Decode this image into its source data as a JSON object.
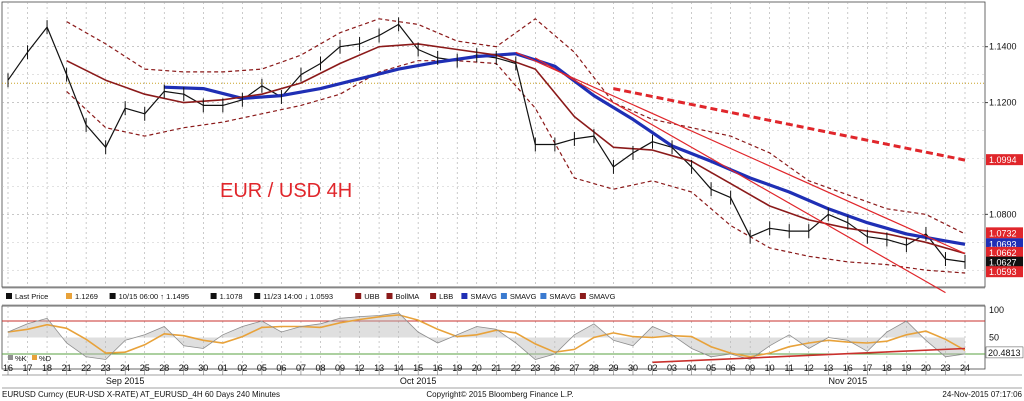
{
  "chart_data": {
    "type": "line",
    "title": "EUR / USD 4H",
    "title_color": "#e0262b",
    "instrument": "EURUSD Curncy (EUR-USD X-RATE) AT_EURUSD_4H 60 Days 240 Minutes",
    "copyright": "Copyright© 2015 Bloomberg Finance L.P.",
    "timestamp": "24-Nov-2015 07:17:06",
    "main_axis": {
      "ylim": [
        1.054,
        1.156
      ],
      "ticks": [
        "1.1400",
        "1.1200",
        "1.0800"
      ],
      "tick_values": [
        1.14,
        1.12,
        1.08
      ]
    },
    "x_axis": {
      "day_ticks": [
        "16",
        "17",
        "18",
        "21",
        "22",
        "23",
        "24",
        "25",
        "28",
        "29",
        "30",
        "01",
        "02",
        "05",
        "06",
        "07",
        "08",
        "09",
        "12",
        "13",
        "14",
        "15",
        "16",
        "19",
        "20",
        "21",
        "22",
        "23",
        "26",
        "27",
        "28",
        "29",
        "30",
        "02",
        "03",
        "04",
        "05",
        "06",
        "09",
        "10",
        "11",
        "12",
        "13",
        "16",
        "17",
        "18",
        "19",
        "20",
        "23",
        "24"
      ],
      "months": [
        {
          "label": "Sep 2015",
          "index": 6
        },
        {
          "label": "Oct 2015",
          "index": 21
        },
        {
          "label": "Nov 2015",
          "index": 43
        }
      ]
    },
    "price_labels": [
      {
        "value": "1.0994",
        "price": 1.0994,
        "bg": "#e0262b",
        "fg": "#ffffff"
      },
      {
        "value": "1.0732",
        "price": 1.0732,
        "bg": "#e0262b",
        "fg": "#ffffff"
      },
      {
        "value": "1.0693",
        "price": 1.0693,
        "bg": "#1f2fb5",
        "fg": "#ffffff"
      },
      {
        "value": "1.0662",
        "price": 1.0662,
        "bg": "#e0262b",
        "fg": "#ffffff"
      },
      {
        "value": "1.0627",
        "price": 1.0627,
        "bg": "#111111",
        "fg": "#ffffff"
      },
      {
        "value": "1.0593",
        "price": 1.0593,
        "bg": "#e0262b",
        "fg": "#ffffff"
      }
    ],
    "legend": [
      {
        "label": "Last Price",
        "color": "#111111"
      },
      {
        "label": "1.1269",
        "color": "#e8a23a"
      },
      {
        "label": "10/15 06:00 ↑ 1.1495",
        "color": "#111111"
      },
      {
        "label": "1.1078",
        "color": "#111111"
      },
      {
        "label": "11/23 14:00 ↓ 1.0593",
        "color": "#111111"
      },
      {
        "label": "UBB",
        "color": "#8b1a1a"
      },
      {
        "label": "BollMA",
        "color": "#8b1a1a"
      },
      {
        "label": "LBB",
        "color": "#8b1a1a"
      },
      {
        "label": "SMAVG",
        "color": "#1f2fb5"
      },
      {
        "label": "SMAVG",
        "color": "#3a7ad0"
      },
      {
        "label": "SMAVG",
        "color": "#3a7ad0"
      },
      {
        "label": "SMAVG",
        "color": "#8b1a1a"
      }
    ],
    "reference_line": {
      "value": 1.1269,
      "color": "#c9a227"
    },
    "series": [
      {
        "name": "Last Price",
        "color": "#111111",
        "x": [
          0,
          1,
          2,
          3,
          4,
          5,
          6,
          7,
          8,
          9,
          10,
          11,
          12,
          13,
          14,
          15,
          16,
          17,
          18,
          19,
          20,
          21,
          22,
          23,
          24,
          25,
          26,
          27,
          28,
          29,
          30,
          31,
          32,
          33,
          34,
          35,
          36,
          37,
          38,
          39,
          40,
          41,
          42,
          43,
          44,
          45,
          46,
          47,
          48,
          49
        ],
        "values": [
          1.128,
          1.138,
          1.147,
          1.13,
          1.112,
          1.104,
          1.118,
          1.116,
          1.124,
          1.123,
          1.119,
          1.119,
          1.121,
          1.126,
          1.122,
          1.13,
          1.134,
          1.14,
          1.141,
          1.144,
          1.148,
          1.139,
          1.136,
          1.135,
          1.137,
          1.136,
          1.134,
          1.105,
          1.105,
          1.107,
          1.108,
          1.097,
          1.102,
          1.106,
          1.104,
          1.097,
          1.089,
          1.086,
          1.072,
          1.075,
          1.074,
          1.074,
          1.08,
          1.077,
          1.072,
          1.071,
          1.069,
          1.073,
          1.064,
          1.063
        ]
      },
      {
        "name": "SMAVG",
        "color": "#1f2fb5",
        "x": [
          8,
          10,
          12,
          14,
          16,
          18,
          20,
          22,
          24,
          26,
          28,
          30,
          32,
          34,
          36,
          38,
          40,
          42,
          44,
          46,
          48,
          49
        ],
        "values": [
          1.1255,
          1.125,
          1.1215,
          1.1225,
          1.125,
          1.1285,
          1.132,
          1.1345,
          1.1365,
          1.1375,
          1.133,
          1.1225,
          1.114,
          1.1045,
          1.099,
          1.093,
          1.088,
          1.082,
          1.077,
          1.073,
          1.0705,
          1.0693
        ]
      },
      {
        "name": "BollMA",
        "color": "#8b1a1a",
        "x": [
          3,
          5,
          7,
          9,
          11,
          13,
          15,
          17,
          19,
          21,
          23,
          25,
          27,
          29,
          31,
          33,
          35,
          37,
          39,
          41,
          43,
          45,
          47,
          49
        ],
        "values": [
          1.135,
          1.128,
          1.123,
          1.12,
          1.121,
          1.123,
          1.127,
          1.134,
          1.14,
          1.141,
          1.139,
          1.137,
          1.132,
          1.115,
          1.104,
          1.103,
          1.099,
          1.091,
          1.083,
          1.078,
          1.075,
          1.073,
          1.07,
          1.066
        ]
      },
      {
        "name": "UBB",
        "color": "#8b1a1a",
        "dashed": true,
        "x": [
          3,
          5,
          7,
          9,
          11,
          13,
          15,
          17,
          19,
          21,
          23,
          25,
          27,
          29,
          31,
          33,
          35,
          37,
          39,
          41,
          43,
          45,
          47,
          49
        ],
        "values": [
          1.149,
          1.141,
          1.132,
          1.131,
          1.131,
          1.132,
          1.137,
          1.145,
          1.15,
          1.148,
          1.142,
          1.14,
          1.15,
          1.138,
          1.12,
          1.114,
          1.111,
          1.108,
          1.102,
          1.092,
          1.087,
          1.082,
          1.08,
          1.073
        ]
      },
      {
        "name": "LBB",
        "color": "#8b1a1a",
        "dashed": true,
        "x": [
          3,
          5,
          7,
          9,
          11,
          13,
          15,
          17,
          19,
          21,
          23,
          25,
          27,
          29,
          31,
          33,
          35,
          37,
          39,
          41,
          43,
          45,
          47,
          49
        ],
        "values": [
          1.124,
          1.111,
          1.108,
          1.111,
          1.113,
          1.116,
          1.119,
          1.123,
          1.131,
          1.135,
          1.135,
          1.134,
          1.118,
          1.093,
          1.089,
          1.092,
          1.088,
          1.076,
          1.068,
          1.065,
          1.063,
          1.062,
          1.06,
          1.059
        ]
      }
    ],
    "annotation_lines": [
      {
        "name": "trend-dotted",
        "color": "#e0262b",
        "dashed": true,
        "x": [
          31,
          49
        ],
        "values": [
          1.125,
          1.0994
        ]
      },
      {
        "name": "trend-red-upper",
        "color": "#e0262b",
        "x": [
          26,
          49
        ],
        "values": [
          1.138,
          1.066
        ]
      },
      {
        "name": "trend-red-lower",
        "color": "#e0262b",
        "x": [
          27,
          48
        ],
        "values": [
          1.136,
          1.052
        ]
      }
    ],
    "oscillator": {
      "ylim": [
        0,
        100
      ],
      "ticks": [
        "100",
        "50"
      ],
      "levels": [
        80,
        20
      ],
      "value_label": "20.4813",
      "legend": [
        {
          "label": "%K",
          "color": "#8e8e8e"
        },
        {
          "label": "%D",
          "color": "#e8a23a"
        }
      ],
      "k_color": "#b8b8b8",
      "d_color": "#e8a23a",
      "values": [
        60,
        75,
        85,
        40,
        15,
        10,
        45,
        55,
        70,
        35,
        30,
        55,
        70,
        80,
        60,
        70,
        75,
        85,
        88,
        90,
        95,
        60,
        40,
        55,
        70,
        65,
        40,
        10,
        20,
        55,
        75,
        45,
        35,
        70,
        55,
        30,
        15,
        20,
        10,
        35,
        55,
        30,
        50,
        45,
        25,
        60,
        80,
        45,
        15,
        20
      ],
      "trend_line": {
        "x": [
          33,
          49
        ],
        "values": [
          5,
          30
        ],
        "color": "#c9302c"
      }
    }
  }
}
